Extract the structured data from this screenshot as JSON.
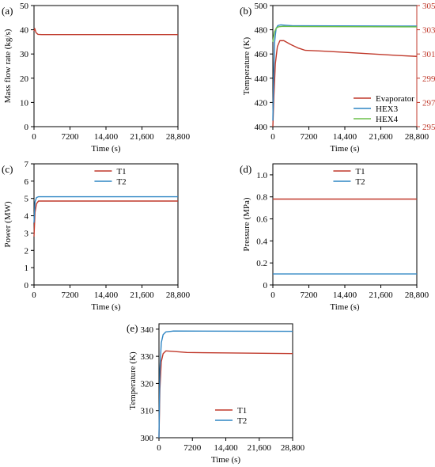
{
  "colors": {
    "red": "#c0392b",
    "blue": "#2f86c4",
    "green": "#6cc04a",
    "axis": "#000000"
  },
  "chart_data": [
    {
      "id": "a",
      "panel_label": "(a)",
      "type": "line",
      "xlabel": "Time (s)",
      "ylabel": "Mass flow rate (kg/s)",
      "xlim": [
        0,
        28800
      ],
      "ylim": [
        0,
        50
      ],
      "xticks": [
        0,
        7200,
        14400,
        21600,
        28800
      ],
      "xtick_labels": [
        "0",
        "7200",
        "14,400",
        "21,600",
        "28,800"
      ],
      "yticks": [
        0,
        10,
        20,
        30,
        40,
        50
      ],
      "ytick_labels": [
        "0",
        "10",
        "20",
        "30",
        "40",
        "50"
      ],
      "series": [
        {
          "color": "red",
          "x": [
            0,
            150,
            400,
            800,
            1500,
            28800
          ],
          "y": [
            39.5,
            40.5,
            38.8,
            38.1,
            38.0,
            38.0
          ]
        }
      ]
    },
    {
      "id": "b",
      "panel_label": "(b)",
      "type": "line",
      "xlabel": "Time (s)",
      "ylabel": "Temperature (K)",
      "xlim": [
        0,
        28800
      ],
      "ylim": [
        400,
        500
      ],
      "xticks": [
        0,
        7200,
        14400,
        21600,
        28800
      ],
      "xtick_labels": [
        "0",
        "7200",
        "14,400",
        "21,600",
        "28,800"
      ],
      "yticks": [
        400,
        420,
        440,
        460,
        480,
        500
      ],
      "ytick_labels": [
        "400",
        "420",
        "440",
        "460",
        "480",
        "500"
      ],
      "y2lim": [
        295,
        305
      ],
      "y2ticks": [
        295,
        297,
        299,
        301,
        303,
        305
      ],
      "y2tick_labels": [
        "295",
        "297",
        "299",
        "301",
        "303",
        "305"
      ],
      "legend_position": "bottom-right",
      "series": [
        {
          "name": "Evaporator",
          "color": "red",
          "axis": "left",
          "x": [
            0,
            200,
            500,
            900,
            1400,
            2200,
            3500,
            5000,
            6500,
            10000,
            15000,
            20000,
            25000,
            28800
          ],
          "y": [
            400,
            425,
            452,
            466,
            471,
            471,
            468,
            465,
            463,
            462.4,
            461.2,
            460,
            458.8,
            458
          ]
        },
        {
          "name": "HEX3",
          "color": "blue",
          "axis": "left",
          "x": [
            0,
            150,
            350,
            650,
            1000,
            1600,
            2500,
            4000,
            28800
          ],
          "y": [
            405,
            440,
            470,
            481,
            483.5,
            484,
            483.7,
            483.3,
            483
          ]
        },
        {
          "name": "HEX4",
          "color": "green",
          "axis": "left",
          "x": [
            0,
            300,
            700,
            1200,
            2000,
            3000,
            28800
          ],
          "y": [
            470,
            478,
            481.5,
            482.5,
            482.8,
            482.7,
            482.4
          ]
        }
      ]
    },
    {
      "id": "c",
      "panel_label": "(c)",
      "type": "line",
      "xlabel": "Time (s)",
      "ylabel": "Power (MW)",
      "xlim": [
        0,
        28800
      ],
      "ylim": [
        0,
        7
      ],
      "xticks": [
        0,
        7200,
        14400,
        21600,
        28800
      ],
      "xtick_labels": [
        "0",
        "7200",
        "14,400",
        "21,600",
        "28,800"
      ],
      "yticks": [
        0,
        1,
        2,
        3,
        4,
        5,
        6,
        7
      ],
      "ytick_labels": [
        "0",
        "1",
        "2",
        "3",
        "4",
        "5",
        "6",
        "7"
      ],
      "legend_position": "top-center",
      "series": [
        {
          "name": "T1",
          "color": "red",
          "x": [
            0,
            200,
            500,
            900,
            1500,
            28800
          ],
          "y": [
            2.8,
            4.2,
            4.7,
            4.85,
            4.85,
            4.85
          ]
        },
        {
          "name": "T2",
          "color": "blue",
          "x": [
            0,
            200,
            500,
            900,
            1500,
            28800
          ],
          "y": [
            3.6,
            4.8,
            5.05,
            5.1,
            5.1,
            5.1
          ]
        }
      ]
    },
    {
      "id": "d",
      "panel_label": "(d)",
      "type": "line",
      "xlabel": "Time (s)",
      "ylabel": "Pressure (MPa)",
      "xlim": [
        0,
        28800
      ],
      "ylim": [
        0,
        1.1
      ],
      "xticks": [
        0,
        7200,
        14400,
        21600,
        28800
      ],
      "xtick_labels": [
        "0",
        "7200",
        "14,400",
        "21,600",
        "28,800"
      ],
      "yticks": [
        0,
        0.2,
        0.4,
        0.6,
        0.8,
        1.0
      ],
      "ytick_labels": [
        "0",
        "0.2",
        "0.4",
        "0.6",
        "0.8",
        "1.0"
      ],
      "legend_position": "top-center",
      "series": [
        {
          "name": "T1",
          "color": "red",
          "x": [
            0,
            28800
          ],
          "y": [
            0.78,
            0.78
          ]
        },
        {
          "name": "T2",
          "color": "blue",
          "x": [
            0,
            28800
          ],
          "y": [
            0.1,
            0.1
          ]
        }
      ]
    },
    {
      "id": "e",
      "panel_label": "(e)",
      "type": "line",
      "xlabel": "Time (s)",
      "ylabel": "Temperature (K)",
      "xlim": [
        0,
        28800
      ],
      "ylim": [
        300,
        342
      ],
      "xticks": [
        0,
        7200,
        14400,
        21600,
        28800
      ],
      "xtick_labels": [
        "0",
        "7200",
        "14,400",
        "21,600",
        "28,800"
      ],
      "yticks": [
        300,
        310,
        320,
        330,
        340
      ],
      "ytick_labels": [
        "300",
        "310",
        "320",
        "330",
        "340"
      ],
      "legend_position": "bottom-center",
      "series": [
        {
          "name": "T1",
          "color": "red",
          "x": [
            0,
            200,
            500,
            900,
            1500,
            3000,
            6000,
            28800
          ],
          "y": [
            300,
            318,
            328,
            331,
            332,
            331.8,
            331.4,
            331
          ]
        },
        {
          "name": "T2",
          "color": "blue",
          "x": [
            0,
            200,
            500,
            900,
            1500,
            3000,
            28800
          ],
          "y": [
            300,
            325,
            335,
            338,
            339,
            339.3,
            339.2
          ]
        }
      ]
    }
  ]
}
